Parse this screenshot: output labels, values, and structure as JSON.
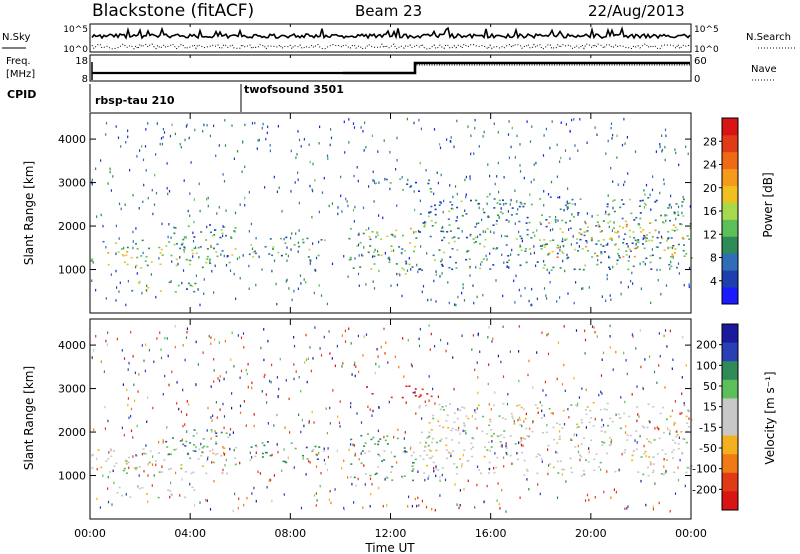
{
  "header": {
    "title": "Blackstone (fitACF)",
    "beam": "Beam 23",
    "date": "22/Aug/2013"
  },
  "top_panels": {
    "nsky_label": "N.Sky",
    "nsky_ticks": [
      "10^5",
      "10^0"
    ],
    "nsearch_label": "N.Search",
    "nsearch_ticks": [
      "10^5",
      "10^0"
    ],
    "freq_label_1": "Freq.",
    "freq_label_2": "[MHz]",
    "freq_ticks": [
      "18",
      "8"
    ],
    "nave_label": "Nave",
    "nave_ticks": [
      "60",
      "0"
    ],
    "cpid_label": "CPID",
    "cpid_modes": [
      {
        "name": "rbsp-tau 210",
        "start_hour": 0
      },
      {
        "name": "twofsound 3501",
        "start_hour": 6
      }
    ]
  },
  "chart_data": [
    {
      "type": "heatmap",
      "xlabel": "Time UT",
      "ylabel": "Slant Range [km]",
      "xlim": [
        0,
        24
      ],
      "ylim": [
        0,
        4600
      ],
      "x_ticks": [
        "00:00",
        "04:00",
        "08:00",
        "12:00",
        "16:00",
        "20:00",
        "00:00"
      ],
      "y_ticks": [
        "1000",
        "2000",
        "3000",
        "4000"
      ],
      "colorbar": {
        "label": "Power [dB]",
        "ticks": [
          "4",
          "8",
          "12",
          "16",
          "20",
          "24",
          "28"
        ],
        "range": [
          0,
          32
        ],
        "colors": [
          "#1a1aff",
          "#1e3fae",
          "#2f6db6",
          "#2e8b57",
          "#5cbf5a",
          "#a8d94a",
          "#f0c020",
          "#f59a1a",
          "#f06a16",
          "#e03a16",
          "#d81414"
        ]
      },
      "regions": [
        {
          "t0": 0.0,
          "t1": 5.8,
          "r0": 1050,
          "r1": 1700,
          "v": 14
        },
        {
          "t0": 1.0,
          "t1": 4.2,
          "r0": 500,
          "r1": 750,
          "v": 12
        },
        {
          "t0": 3.0,
          "t1": 5.8,
          "r0": 1500,
          "r1": 2100,
          "v": 10
        },
        {
          "t0": 6.3,
          "t1": 9.4,
          "r0": 1300,
          "r1": 1800,
          "v": 12
        },
        {
          "t0": 10.3,
          "t1": 13.0,
          "r0": 900,
          "r1": 2000,
          "v": 14
        },
        {
          "t0": 11.0,
          "t1": 13.8,
          "r0": 2800,
          "r1": 3100,
          "v": 6
        },
        {
          "t0": 13.1,
          "t1": 24.0,
          "r0": 1000,
          "r1": 2700,
          "v": 10
        },
        {
          "t0": 18.0,
          "t1": 24.0,
          "r0": 1300,
          "r1": 2100,
          "v": 18
        }
      ]
    },
    {
      "type": "heatmap",
      "xlabel": "Time UT",
      "ylabel": "Slant Range [km]",
      "xlim": [
        0,
        24
      ],
      "ylim": [
        0,
        4600
      ],
      "x_ticks": [
        "00:00",
        "04:00",
        "08:00",
        "12:00",
        "16:00",
        "20:00",
        "00:00"
      ],
      "y_ticks": [
        "1000",
        "2000",
        "3000",
        "4000"
      ],
      "colorbar": {
        "label": "Velocity [m s⁻¹]",
        "ticks": [
          "200",
          "100",
          "50",
          "15",
          "-15",
          "-50",
          "-100",
          "-200"
        ],
        "range": [
          -250,
          250
        ],
        "colors": [
          "#1a1a9e",
          "#2a3fb6",
          "#2e8b57",
          "#5cbf5a",
          "#c8c8c8",
          "#c8c8c8",
          "#f5b020",
          "#f07a16",
          "#e03a16",
          "#d81414"
        ]
      },
      "regions": [
        {
          "t0": 0.0,
          "t1": 5.8,
          "r0": 1050,
          "r1": 1700,
          "v": 0
        },
        {
          "t0": 1.0,
          "t1": 4.2,
          "r0": 500,
          "r1": 750,
          "v": 0
        },
        {
          "t0": 3.0,
          "t1": 5.8,
          "r0": 1500,
          "r1": 2100,
          "v": 60
        },
        {
          "t0": 6.3,
          "t1": 9.4,
          "r0": 1300,
          "r1": 1800,
          "v": 60
        },
        {
          "t0": 10.3,
          "t1": 13.0,
          "r0": 900,
          "r1": 2000,
          "v": 40
        },
        {
          "t0": 11.0,
          "t1": 13.8,
          "r0": 2800,
          "r1": 3100,
          "v": -200
        },
        {
          "t0": 13.1,
          "t1": 24.0,
          "r0": 1000,
          "r1": 2700,
          "v": 0
        }
      ]
    }
  ]
}
